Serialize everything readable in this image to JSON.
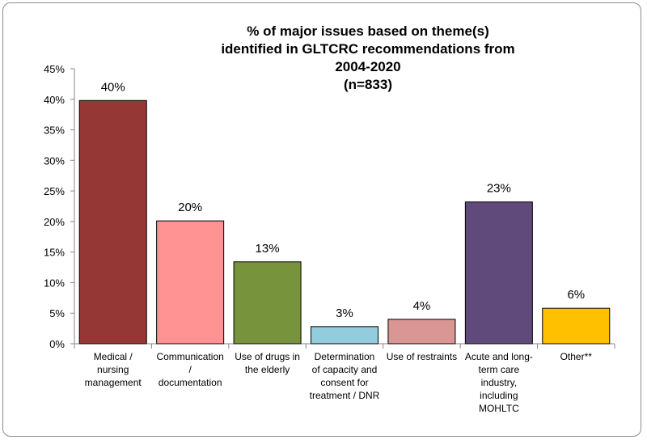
{
  "chart_data": {
    "type": "bar",
    "title_lines": [
      "% of major issues based on theme(s)",
      "identified in GLTCRC recommendations from",
      "2004-2020",
      "(n=833)"
    ],
    "categories": [
      "Medical / nursing management",
      "Communication / documentation",
      "Use of drugs in the elderly",
      "Determination of capacity and consent for treatment / DNR",
      "Use of restraints",
      "Acute and long-term care industry, including MOHLTC",
      "Other**"
    ],
    "category_lines": [
      [
        "Medical /",
        "nursing",
        "management"
      ],
      [
        "Communication",
        "/",
        "documentation"
      ],
      [
        "Use of drugs in",
        "the elderly"
      ],
      [
        "Determination",
        "of capacity and",
        "consent for",
        "treatment / DNR"
      ],
      [
        "Use of restraints"
      ],
      [
        "Acute and long-",
        "term care",
        "industry,",
        "including",
        "MOHLTC"
      ],
      [
        "Other**"
      ]
    ],
    "values": [
      39.8,
      20.1,
      13.4,
      2.8,
      4.0,
      23.2,
      5.8
    ],
    "data_labels": [
      "40%",
      "20%",
      "13%",
      "3%",
      "4%",
      "23%",
      "6%"
    ],
    "colors": [
      "#953735",
      "#ff9393",
      "#77933c",
      "#93cddd",
      "#d99694",
      "#604a7b",
      "#ffc000"
    ],
    "ylim": [
      0,
      45
    ],
    "yticks": [
      0,
      5,
      10,
      15,
      20,
      25,
      30,
      35,
      40,
      45
    ],
    "ytick_labels": [
      "0%",
      "5%",
      "10%",
      "15%",
      "20%",
      "25%",
      "30%",
      "35%",
      "40%",
      "45%"
    ],
    "xlabel": "",
    "ylabel": "",
    "grid": false,
    "legend": "none"
  }
}
